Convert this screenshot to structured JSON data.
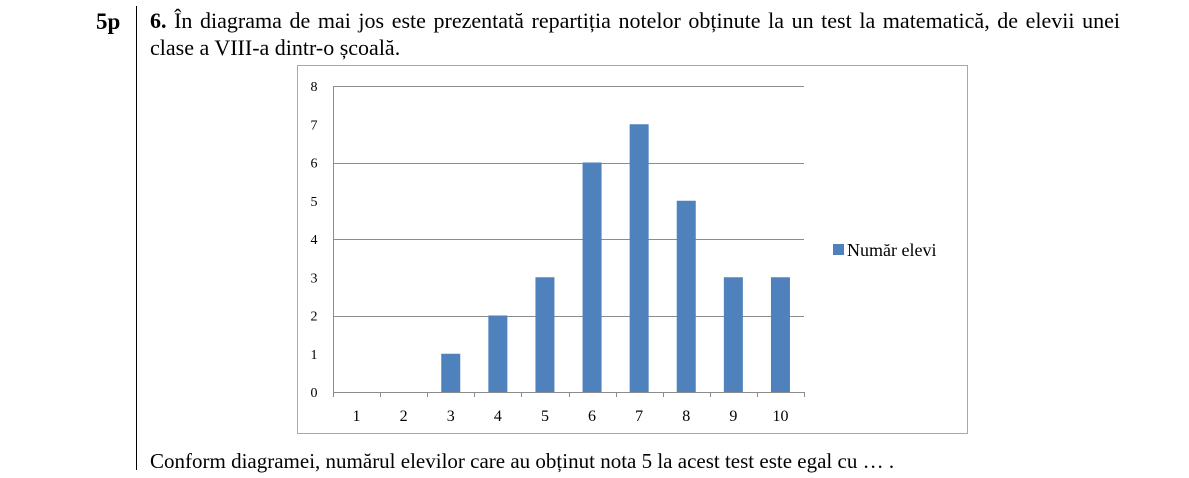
{
  "points": "5p",
  "question": {
    "number": "6.",
    "text": "În diagrama de mai jos este prezentată repartiția notelor obținute la un test la matematică, de elevii unei clase a VIII-a dintr-o școală."
  },
  "chart_data": {
    "type": "bar",
    "categories": [
      "1",
      "2",
      "3",
      "4",
      "5",
      "6",
      "7",
      "8",
      "9",
      "10"
    ],
    "series": [
      {
        "name": "Număr elevi",
        "values": [
          0,
          0,
          1,
          2,
          3,
          6,
          7,
          5,
          3,
          3
        ],
        "color": "#4f81bd"
      }
    ],
    "y_ticks": [
      "0",
      "1",
      "2",
      "3",
      "4",
      "5",
      "6",
      "7",
      "8"
    ],
    "ylim": [
      0,
      8
    ],
    "grid": true,
    "legend": "right"
  },
  "question_end": "Conform diagramei, numărul elevilor care au obținut nota 5 la acest test este egal cu … ."
}
